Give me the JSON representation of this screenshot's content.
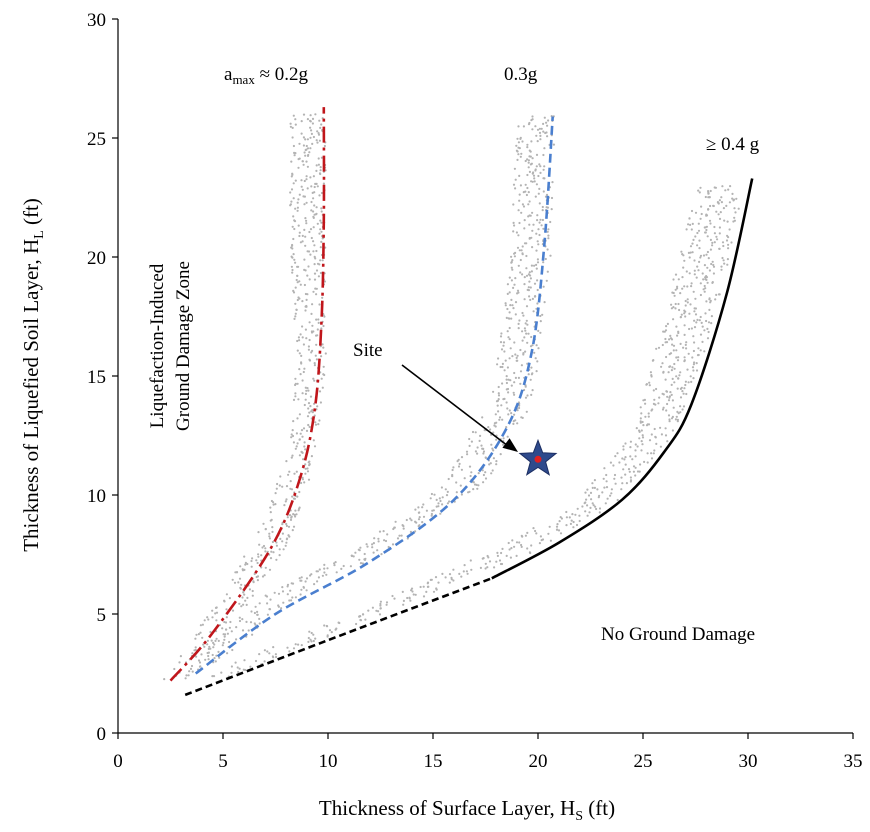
{
  "chart_data": {
    "type": "line",
    "xlabel": "Thickness of Surface Layer, H",
    "xlabel_sub": "S",
    "xlabel_unit": " (ft)",
    "ylabel": "Thickness of Liquefied Soil Layer, H",
    "ylabel_sub": "L",
    "ylabel_unit": " (ft)",
    "xlim": [
      0,
      35
    ],
    "ylim": [
      0,
      30
    ],
    "xticks": [
      "0",
      "5",
      "10",
      "15",
      "20",
      "25",
      "30",
      "35"
    ],
    "yticks": [
      "0",
      "5",
      "10",
      "15",
      "20",
      "25",
      "30"
    ],
    "grid": false,
    "series": [
      {
        "name": "a_max ≈ 0.2g",
        "color": "#c0161b",
        "style": "dashdot",
        "x": [
          2.5,
          4.5,
          7.3,
          8.7,
          9.4,
          9.7,
          9.8,
          9.8
        ],
        "y": [
          2.2,
          4.2,
          7.8,
          10.8,
          13.8,
          17.5,
          21.5,
          26.3
        ]
      },
      {
        "name": "0.3g",
        "color": "#4a7fcf",
        "style": "dashed",
        "x": [
          3.7,
          7.5,
          12.0,
          16.0,
          18.5,
          19.7,
          20.3,
          20.7
        ],
        "y": [
          2.5,
          5.0,
          7.2,
          9.8,
          12.8,
          16.0,
          20.5,
          25.9
        ]
      },
      {
        "name": "≥ 0.4 g",
        "color": "#000000",
        "style": "dashed-then-solid",
        "solid_from_x": 17.8,
        "x": [
          3.2,
          10.0,
          17.8,
          21.0,
          24.0,
          26.0,
          27.3,
          29.0,
          30.2
        ],
        "y": [
          1.6,
          3.9,
          6.5,
          8.0,
          9.8,
          11.8,
          13.8,
          18.5,
          23.3
        ]
      }
    ],
    "uncertainty_bands": [
      {
        "x_left": [
          2.2,
          4.0,
          6.6,
          8.0,
          8.5,
          8.2,
          8.2
        ],
        "x_right": [
          3.6,
          5.5,
          8.3,
          9.4,
          9.9,
          9.9,
          9.9
        ],
        "y": [
          2.3,
          4.6,
          8.2,
          11.5,
          15.5,
          21.0,
          26.0
        ]
      },
      {
        "x_left": [
          3.5,
          7.0,
          11.5,
          15.5,
          17.8,
          18.7,
          19.0
        ],
        "x_right": [
          4.8,
          8.6,
          13.2,
          17.5,
          19.8,
          20.6,
          20.8
        ],
        "y": [
          3.0,
          5.8,
          7.8,
          10.5,
          14.0,
          20.0,
          26.0
        ]
      },
      {
        "x_left": [
          4.2,
          10.5,
          17.5,
          21.5,
          24.5,
          26.0,
          27.6
        ],
        "x_right": [
          5.5,
          12.0,
          19.5,
          23.5,
          26.5,
          28.5,
          29.8
        ],
        "y": [
          2.4,
          4.8,
          7.5,
          9.5,
          12.5,
          17.5,
          23.0
        ]
      }
    ],
    "site": {
      "label": "Site",
      "x": 20.0,
      "y": 11.5,
      "marker_color": "#2e4a8c",
      "center_color": "#e02020"
    },
    "annotations": {
      "amax_main": "a",
      "amax_sub": "max",
      "amax_rest": " ≈ 0.2g",
      "label_03": "0.3g",
      "label_04": "≥ 0.4 g",
      "zone_damage_line1": "Liquefaction-Induced",
      "zone_damage_line2": "Ground Damage Zone",
      "zone_no_damage": "No Ground Damage"
    }
  }
}
